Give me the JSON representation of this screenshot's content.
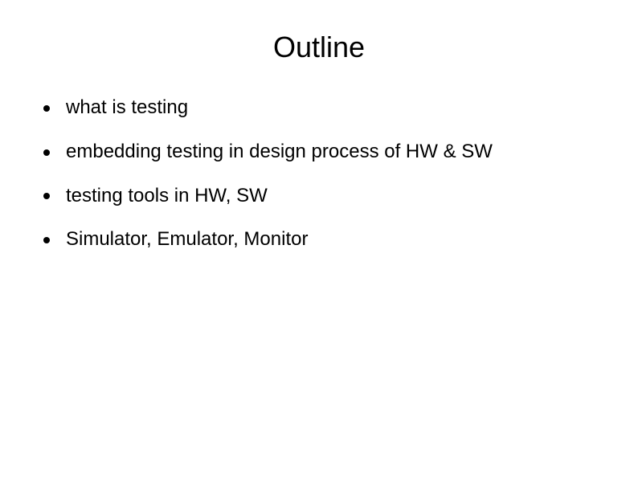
{
  "title": "Outline",
  "title_fontsize": 36,
  "body_fontsize": 24,
  "background_color": "#ffffff",
  "text_color": "#000000",
  "bullet_color": "#000000",
  "bullets": [
    "what is testing",
    "embedding testing in design process of HW & SW",
    "testing tools in HW, SW",
    "Simulator, Emulator, Monitor"
  ]
}
